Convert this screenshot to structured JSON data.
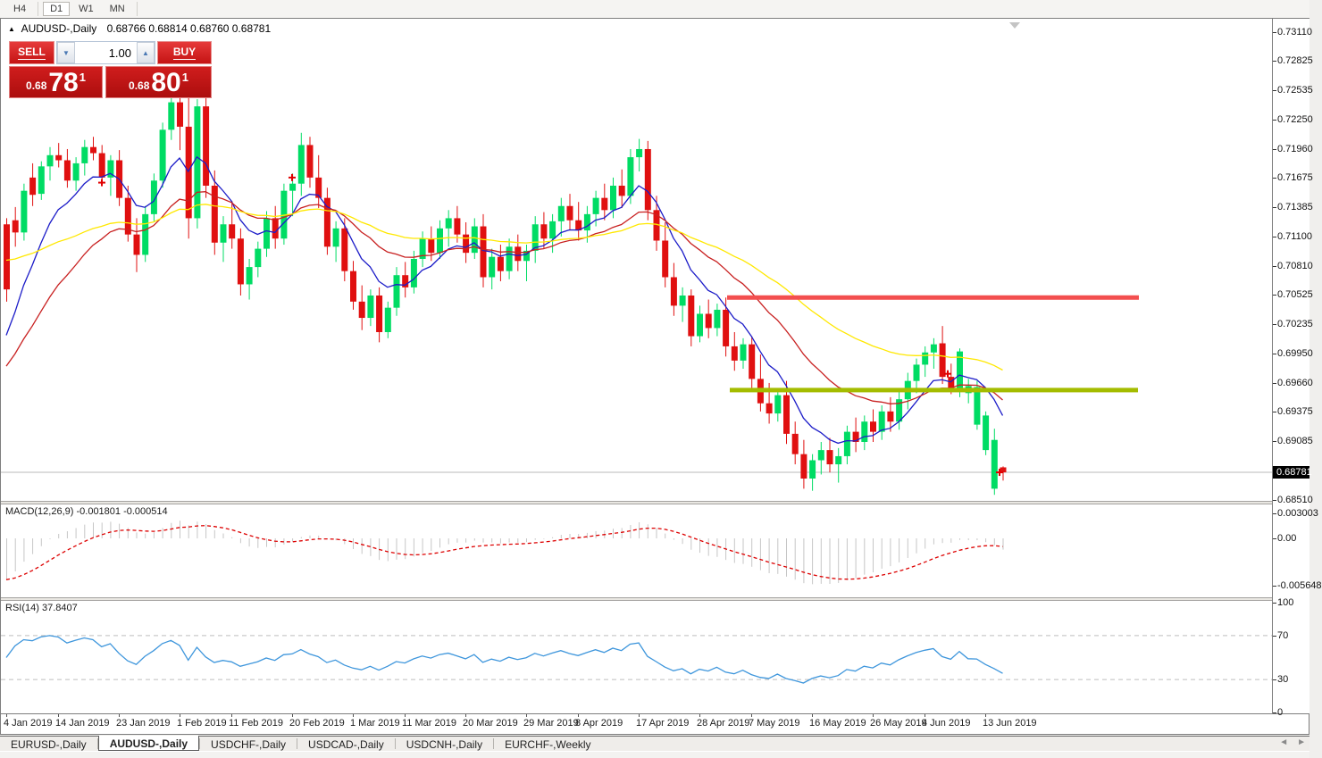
{
  "toolbar": {
    "timeframes": [
      {
        "label": "H4",
        "active": false
      },
      {
        "label": "D1",
        "active": true
      },
      {
        "label": "W1",
        "active": false
      },
      {
        "label": "MN",
        "active": false
      }
    ]
  },
  "chart": {
    "title": "AUDUSD-,Daily",
    "quotes": "0.68766 0.68814 0.68760 0.68781",
    "arrow": "▲"
  },
  "trade_panel": {
    "sell_label": "SELL",
    "buy_label": "BUY",
    "volume": "1.00",
    "spin_down": "▼",
    "spin_up": "▲",
    "sell_price": {
      "prefix": "0.68",
      "big": "78",
      "sup": "1"
    },
    "buy_price": {
      "prefix": "0.68",
      "big": "80",
      "sup": "1"
    }
  },
  "price_axis": {
    "labels": [
      "0.73110",
      "0.72825",
      "0.72535",
      "0.72250",
      "0.71960",
      "0.71675",
      "0.71385",
      "0.71100",
      "0.70810",
      "0.70525",
      "0.70235",
      "0.69950",
      "0.69660",
      "0.69375",
      "0.69085",
      "0.68510"
    ],
    "current_tag": "0.68781"
  },
  "macd_panel": {
    "label": "MACD(12,26,9)",
    "values": "-0.001801 -0.000514",
    "axis": [
      "0.003003",
      "0.00",
      "-0.005648"
    ]
  },
  "rsi_panel": {
    "label": "RSI(14)",
    "value": "37.8407",
    "axis": [
      "100",
      "70",
      "30",
      "0"
    ]
  },
  "tabs": [
    {
      "label": "EURUSD-,Daily",
      "active": false
    },
    {
      "label": "AUDUSD-,Daily",
      "active": true
    },
    {
      "label": "USDCHF-,Daily",
      "active": false
    },
    {
      "label": "USDCAD-,Daily",
      "active": false
    },
    {
      "label": "USDCNH-,Daily",
      "active": false
    },
    {
      "label": "EURCHF-,Weekly",
      "active": false
    }
  ],
  "tab_scroll": {
    "left": "◄",
    "right": "►"
  },
  "chart_data": {
    "type": "candlestick",
    "symbol": "AUDUSD-,Daily",
    "ylim": [
      0.6845,
      0.7325
    ],
    "bull_color": "#00DC64",
    "bear_color": "#E01010",
    "wick_same_as_body": true,
    "candles": [
      [
        0.7122,
        0.7128,
        0.7046,
        0.7058
      ],
      [
        0.7126,
        0.7139,
        0.71,
        0.7114
      ],
      [
        0.7114,
        0.7162,
        0.7106,
        0.7155
      ],
      [
        0.7168,
        0.7182,
        0.714,
        0.7151
      ],
      [
        0.7152,
        0.7184,
        0.7146,
        0.7179
      ],
      [
        0.7179,
        0.7198,
        0.7165,
        0.719
      ],
      [
        0.719,
        0.7202,
        0.7178,
        0.7185
      ],
      [
        0.7185,
        0.7196,
        0.7158,
        0.7165
      ],
      [
        0.7165,
        0.7188,
        0.7155,
        0.7182
      ],
      [
        0.7182,
        0.7205,
        0.717,
        0.7198
      ],
      [
        0.7198,
        0.7208,
        0.7185,
        0.7192
      ],
      [
        0.7192,
        0.72,
        0.716,
        0.7168
      ],
      [
        0.7168,
        0.719,
        0.715,
        0.7185
      ],
      [
        0.7185,
        0.7195,
        0.714,
        0.7148
      ],
      [
        0.7148,
        0.716,
        0.7105,
        0.7112
      ],
      [
        0.7112,
        0.7128,
        0.7075,
        0.7092
      ],
      [
        0.7092,
        0.714,
        0.7085,
        0.7132
      ],
      [
        0.7132,
        0.7172,
        0.7125,
        0.7165
      ],
      [
        0.7165,
        0.7222,
        0.7158,
        0.7215
      ],
      [
        0.7215,
        0.7248,
        0.7205,
        0.7242
      ],
      [
        0.7242,
        0.7251,
        0.7195,
        0.7218
      ],
      [
        0.7218,
        0.7246,
        0.7108,
        0.7128
      ],
      [
        0.7128,
        0.7245,
        0.7118,
        0.7238
      ],
      [
        0.7238,
        0.7246,
        0.7148,
        0.716
      ],
      [
        0.716,
        0.7175,
        0.7092,
        0.7104
      ],
      [
        0.7104,
        0.713,
        0.7085,
        0.7122
      ],
      [
        0.7122,
        0.7145,
        0.7098,
        0.7108
      ],
      [
        0.7108,
        0.7118,
        0.7052,
        0.7063
      ],
      [
        0.7063,
        0.7088,
        0.7048,
        0.708
      ],
      [
        0.708,
        0.7105,
        0.707,
        0.7098
      ],
      [
        0.7098,
        0.7135,
        0.709,
        0.7128
      ],
      [
        0.7128,
        0.714,
        0.7098,
        0.7108
      ],
      [
        0.7108,
        0.7162,
        0.7102,
        0.7155
      ],
      [
        0.7155,
        0.7172,
        0.713,
        0.7162
      ],
      [
        0.7162,
        0.7212,
        0.715,
        0.72
      ],
      [
        0.72,
        0.7208,
        0.7158,
        0.7168
      ],
      [
        0.7168,
        0.719,
        0.7138,
        0.7148
      ],
      [
        0.7148,
        0.7158,
        0.7092,
        0.71
      ],
      [
        0.71,
        0.7125,
        0.7085,
        0.7118
      ],
      [
        0.7118,
        0.7128,
        0.7066,
        0.7076
      ],
      [
        0.7076,
        0.7086,
        0.7038,
        0.7046
      ],
      [
        0.7046,
        0.7062,
        0.7018,
        0.703
      ],
      [
        0.703,
        0.7058,
        0.7022,
        0.7052
      ],
      [
        0.7052,
        0.706,
        0.7006,
        0.7016
      ],
      [
        0.7016,
        0.7046,
        0.701,
        0.704
      ],
      [
        0.704,
        0.708,
        0.7032,
        0.7072
      ],
      [
        0.7072,
        0.7085,
        0.705,
        0.706
      ],
      [
        0.706,
        0.7096,
        0.7054,
        0.7088
      ],
      [
        0.7088,
        0.7115,
        0.708,
        0.7108
      ],
      [
        0.7108,
        0.712,
        0.7086,
        0.7094
      ],
      [
        0.7094,
        0.7126,
        0.7088,
        0.7118
      ],
      [
        0.7118,
        0.7136,
        0.71,
        0.7128
      ],
      [
        0.7128,
        0.714,
        0.7104,
        0.7112
      ],
      [
        0.7112,
        0.7124,
        0.7084,
        0.7094
      ],
      [
        0.7094,
        0.7128,
        0.7088,
        0.712
      ],
      [
        0.712,
        0.7132,
        0.706,
        0.707
      ],
      [
        0.707,
        0.7098,
        0.7058,
        0.709
      ],
      [
        0.709,
        0.7102,
        0.7066,
        0.7076
      ],
      [
        0.7076,
        0.7108,
        0.7068,
        0.71
      ],
      [
        0.71,
        0.7112,
        0.7076,
        0.7086
      ],
      [
        0.7086,
        0.7102,
        0.7066,
        0.7096
      ],
      [
        0.7096,
        0.713,
        0.7084,
        0.7122
      ],
      [
        0.7122,
        0.7134,
        0.7098,
        0.7108
      ],
      [
        0.7108,
        0.7132,
        0.7094,
        0.7125
      ],
      [
        0.7125,
        0.7148,
        0.711,
        0.714
      ],
      [
        0.714,
        0.7152,
        0.7116,
        0.7126
      ],
      [
        0.7126,
        0.7144,
        0.7106,
        0.7116
      ],
      [
        0.7116,
        0.714,
        0.7104,
        0.7132
      ],
      [
        0.7132,
        0.7155,
        0.712,
        0.7148
      ],
      [
        0.7148,
        0.7162,
        0.7126,
        0.7136
      ],
      [
        0.7136,
        0.7168,
        0.7128,
        0.716
      ],
      [
        0.716,
        0.7176,
        0.7138,
        0.715
      ],
      [
        0.715,
        0.7196,
        0.7142,
        0.7188
      ],
      [
        0.7188,
        0.7206,
        0.7174,
        0.7196
      ],
      [
        0.7196,
        0.7204,
        0.7126,
        0.7136
      ],
      [
        0.7136,
        0.715,
        0.7096,
        0.7106
      ],
      [
        0.7106,
        0.7124,
        0.706,
        0.707
      ],
      [
        0.707,
        0.7084,
        0.7032,
        0.7042
      ],
      [
        0.7042,
        0.706,
        0.7026,
        0.7052
      ],
      [
        0.7052,
        0.7058,
        0.7002,
        0.7012
      ],
      [
        0.7012,
        0.7042,
        0.7006,
        0.7034
      ],
      [
        0.7034,
        0.7048,
        0.701,
        0.702
      ],
      [
        0.702,
        0.7044,
        0.7012,
        0.7038
      ],
      [
        0.7038,
        0.705,
        0.6992,
        0.7002
      ],
      [
        0.7002,
        0.7016,
        0.6978,
        0.6988
      ],
      [
        0.6988,
        0.701,
        0.698,
        0.7004
      ],
      [
        0.7004,
        0.7012,
        0.696,
        0.697
      ],
      [
        0.697,
        0.6994,
        0.6938,
        0.6946
      ],
      [
        0.6946,
        0.6966,
        0.6926,
        0.6936
      ],
      [
        0.6936,
        0.696,
        0.6928,
        0.6954
      ],
      [
        0.6954,
        0.6968,
        0.6906,
        0.6916
      ],
      [
        0.6916,
        0.6928,
        0.6886,
        0.6896
      ],
      [
        0.6896,
        0.691,
        0.6862,
        0.6872
      ],
      [
        0.6872,
        0.6896,
        0.686,
        0.689
      ],
      [
        0.689,
        0.6908,
        0.6876,
        0.69
      ],
      [
        0.69,
        0.6912,
        0.6878,
        0.6886
      ],
      [
        0.6886,
        0.6902,
        0.6868,
        0.6894
      ],
      [
        0.6894,
        0.6924,
        0.6886,
        0.6918
      ],
      [
        0.6918,
        0.6932,
        0.6898,
        0.6908
      ],
      [
        0.6908,
        0.6934,
        0.69,
        0.6928
      ],
      [
        0.6928,
        0.694,
        0.6908,
        0.6918
      ],
      [
        0.6918,
        0.6944,
        0.691,
        0.6938
      ],
      [
        0.6938,
        0.6952,
        0.6918,
        0.6928
      ],
      [
        0.6928,
        0.6958,
        0.692,
        0.695
      ],
      [
        0.695,
        0.6976,
        0.694,
        0.6968
      ],
      [
        0.6968,
        0.699,
        0.6956,
        0.6984
      ],
      [
        0.6984,
        0.7002,
        0.6972,
        0.6996
      ],
      [
        0.6996,
        0.701,
        0.698,
        0.7004
      ],
      [
        0.7005,
        0.7022,
        0.6965,
        0.6972
      ],
      [
        0.6972,
        0.6985,
        0.6955,
        0.696
      ],
      [
        0.6959,
        0.7,
        0.6952,
        0.6997
      ],
      [
        0.6956,
        0.697,
        0.6946,
        0.6963
      ],
      [
        0.6925,
        0.6968,
        0.692,
        0.6962
      ],
      [
        0.69,
        0.6938,
        0.6895,
        0.6934
      ],
      [
        0.6862,
        0.6921,
        0.6856,
        0.691
      ],
      [
        0.6883,
        0.6884,
        0.687,
        0.68781
      ]
    ],
    "overlays": [
      {
        "name": "ma-fast",
        "type": "ema",
        "period": 8,
        "seed": 0.7,
        "color": "#1C1CC8"
      },
      {
        "name": "ma-medium",
        "type": "ema",
        "period": 21,
        "seed": 0.6975,
        "color": "#C82020"
      },
      {
        "name": "ma-slow",
        "type": "ema",
        "period": 45,
        "seed": 0.7088,
        "color": "#FFE800"
      }
    ],
    "hlines": [
      {
        "price": 0.705,
        "color": "#F34F4F",
        "x1": 813,
        "x2": 1274,
        "width": 5,
        "name": "resistance-line"
      },
      {
        "price": 0.6959,
        "color": "#A4BC00",
        "x1": 816,
        "x2": 1273,
        "width": 5,
        "name": "support-line"
      }
    ],
    "current_price": 0.68781,
    "current_price_line_color": "#B9B9B9",
    "markers": [
      {
        "x": 113,
        "price": 0.7163,
        "glyph": "+",
        "color": "#E00000"
      },
      {
        "x": 326,
        "price": 0.7168,
        "glyph": "+",
        "color": "#E00000"
      },
      {
        "x": 1060,
        "price": 0.6975,
        "glyph": "+",
        "color": "#E00000"
      },
      {
        "x": 1118,
        "price": 0.68781,
        "glyph": "+",
        "color": "#E00000"
      }
    ],
    "time_ticks": [
      {
        "label": "4 Jan 2019",
        "i": 0
      },
      {
        "label": "14 Jan 2019",
        "i": 6
      },
      {
        "label": "23 Jan 2019",
        "i": 13
      },
      {
        "label": "1 Feb 2019",
        "i": 20
      },
      {
        "label": "11 Feb 2019",
        "i": 26
      },
      {
        "label": "20 Feb 2019",
        "i": 33
      },
      {
        "label": "1 Mar 2019",
        "i": 40
      },
      {
        "label": "11 Mar 2019",
        "i": 46
      },
      {
        "label": "20 Mar 2019",
        "i": 53
      },
      {
        "label": "29 Mar 2019",
        "i": 60
      },
      {
        "label": "8 Apr 2019",
        "i": 66
      },
      {
        "label": "17 Apr 2019",
        "i": 73
      },
      {
        "label": "28 Apr 2019",
        "i": 80
      },
      {
        "label": "7 May 2019",
        "i": 86
      },
      {
        "label": "16 May 2019",
        "i": 93
      },
      {
        "label": "26 May 2019",
        "i": 100
      },
      {
        "label": "4 Jun 2019",
        "i": 106
      },
      {
        "label": "13 Jun 2019",
        "i": 113
      }
    ],
    "macd": {
      "fast": 12,
      "slow": 26,
      "signal": 9,
      "hist_color": "#C6C6C6",
      "signal_color": "#DD0000",
      "range": [
        -0.005648,
        0.003003
      ]
    },
    "rsi": {
      "period": 14,
      "color": "#3E96DC",
      "levels": [
        30,
        70
      ],
      "level_color": "#BDBDBD"
    }
  }
}
